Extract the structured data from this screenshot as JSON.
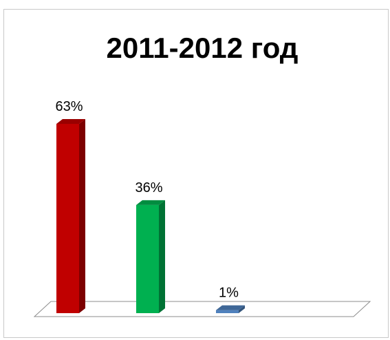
{
  "chart_data": {
    "type": "bar",
    "title": "2011-2012 год",
    "categories": [
      "",
      "",
      ""
    ],
    "values": [
      63,
      36,
      1
    ],
    "data_labels": [
      "63%",
      "36%",
      "1%"
    ],
    "colors": [
      "#c00000",
      "#00b050",
      "#4f81bd"
    ],
    "ylim": [
      0,
      63
    ],
    "grid": false,
    "legend": "none",
    "style": "3d-column"
  }
}
